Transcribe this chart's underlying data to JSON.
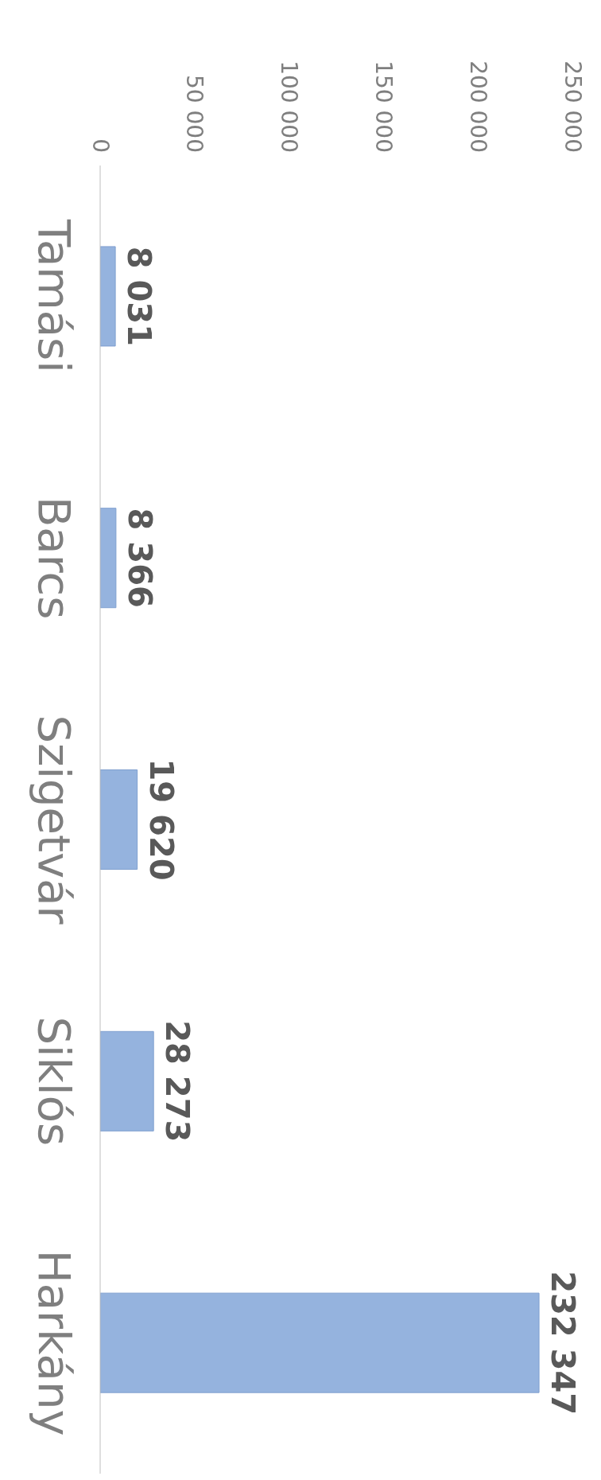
{
  "chart_data": {
    "type": "bar",
    "orientation": "horizontal",
    "categories": [
      "Tamási",
      "Barcs",
      "Szigetvár",
      "Siklós",
      "Harkány"
    ],
    "values": [
      8031,
      8366,
      19620,
      28273,
      232347
    ],
    "value_labels": [
      "8 031",
      "8 366",
      "19 620",
      "28 273",
      "232 347"
    ],
    "color": "#95b3de",
    "xlim": [
      0,
      250000
    ],
    "xticks": [
      0,
      {
        "value": 50000,
        "label": "50 000"
      },
      {
        "value": 100000,
        "label": "100 000"
      },
      {
        "value": 150000,
        "label": "150 000"
      },
      {
        "value": 200000,
        "label": "200 000"
      },
      {
        "value": 250000,
        "label": "250 000"
      }
    ]
  }
}
